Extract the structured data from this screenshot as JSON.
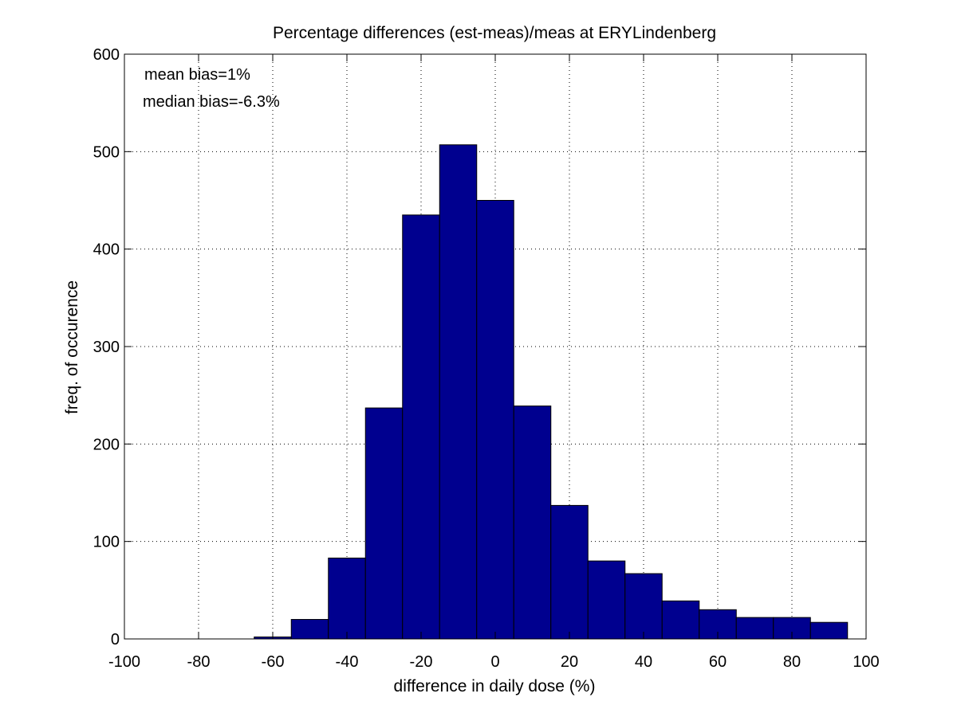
{
  "chart_data": {
    "type": "bar",
    "title": "Percentage differences (est-meas)/meas at ERYLindenberg",
    "xlabel": "difference in daily dose (%)",
    "ylabel": "freq. of occurence",
    "xlim": [
      -100,
      100
    ],
    "ylim": [
      0,
      600
    ],
    "xticks": [
      -100,
      -80,
      -60,
      -40,
      -20,
      0,
      20,
      40,
      60,
      80,
      100
    ],
    "yticks": [
      0,
      100,
      200,
      300,
      400,
      500,
      600
    ],
    "grid": true,
    "bar_color": "#00008f",
    "bin_width": 10,
    "bin_centers": [
      -90,
      -80,
      -70,
      -60,
      -50,
      -40,
      -30,
      -20,
      -10,
      0,
      10,
      20,
      30,
      40,
      50,
      60,
      70,
      80,
      90
    ],
    "values": [
      0,
      0,
      0,
      2,
      20,
      83,
      237,
      435,
      507,
      450,
      239,
      137,
      80,
      67,
      39,
      30,
      22,
      22,
      17
    ],
    "annotations": [
      "mean bias=1%",
      "median bias=-6.3%"
    ]
  }
}
